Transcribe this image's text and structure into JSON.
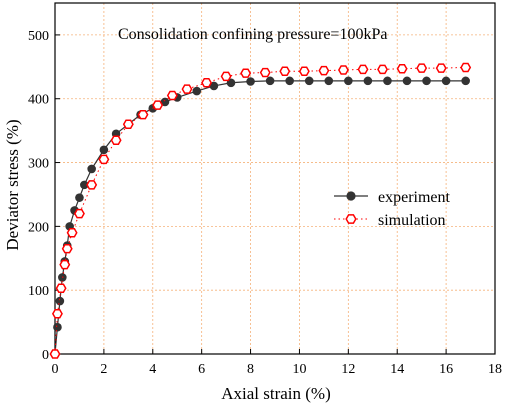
{
  "chart_data": {
    "type": "scatter",
    "title": "",
    "annotation": "Consolidation confining pressure=100kPa",
    "xlabel": "Axial strain (%)",
    "ylabel": "Deviator stress (%)",
    "xlim": [
      0,
      18
    ],
    "ylim": [
      0,
      550
    ],
    "xticks": [
      "0",
      "2",
      "4",
      "6",
      "8",
      "10",
      "12",
      "14",
      "16",
      "18"
    ],
    "yticks": [
      "0",
      "100",
      "200",
      "300",
      "400",
      "500"
    ],
    "grid": true,
    "legend_position": "right",
    "series": [
      {
        "name": "experiment",
        "color": "#333333",
        "marker": "filled-circle",
        "line": "solid",
        "x": [
          0.0,
          0.1,
          0.2,
          0.3,
          0.4,
          0.5,
          0.6,
          0.8,
          1.0,
          1.2,
          1.5,
          2.0,
          2.5,
          3.0,
          3.5,
          4.0,
          4.5,
          5.0,
          5.8,
          6.5,
          7.2,
          8.0,
          8.8,
          9.6,
          10.4,
          11.2,
          12.0,
          12.8,
          13.6,
          14.4,
          15.2,
          16.0,
          16.8
        ],
        "y": [
          0,
          42,
          83,
          120,
          145,
          170,
          200,
          225,
          245,
          265,
          290,
          320,
          345,
          360,
          375,
          385,
          395,
          402,
          412,
          420,
          425,
          427,
          428,
          428,
          428,
          428,
          428,
          428,
          428,
          428,
          428,
          428,
          428
        ]
      },
      {
        "name": "simulation",
        "color": "#ff0000",
        "marker": "open-hexagon",
        "line": "dotted",
        "x": [
          0.0,
          0.1,
          0.25,
          0.4,
          0.5,
          0.7,
          1.0,
          1.5,
          2.0,
          2.5,
          3.0,
          3.6,
          4.2,
          4.8,
          5.4,
          6.2,
          7.0,
          7.8,
          8.6,
          9.4,
          10.2,
          11.0,
          11.8,
          12.6,
          13.4,
          14.2,
          15.0,
          15.8,
          16.8
        ],
        "y": [
          0,
          63,
          103,
          140,
          165,
          190,
          220,
          265,
          305,
          335,
          360,
          375,
          390,
          405,
          415,
          425,
          435,
          440,
          441,
          443,
          443,
          444,
          445,
          446,
          446,
          447,
          448,
          448,
          449
        ]
      }
    ]
  }
}
